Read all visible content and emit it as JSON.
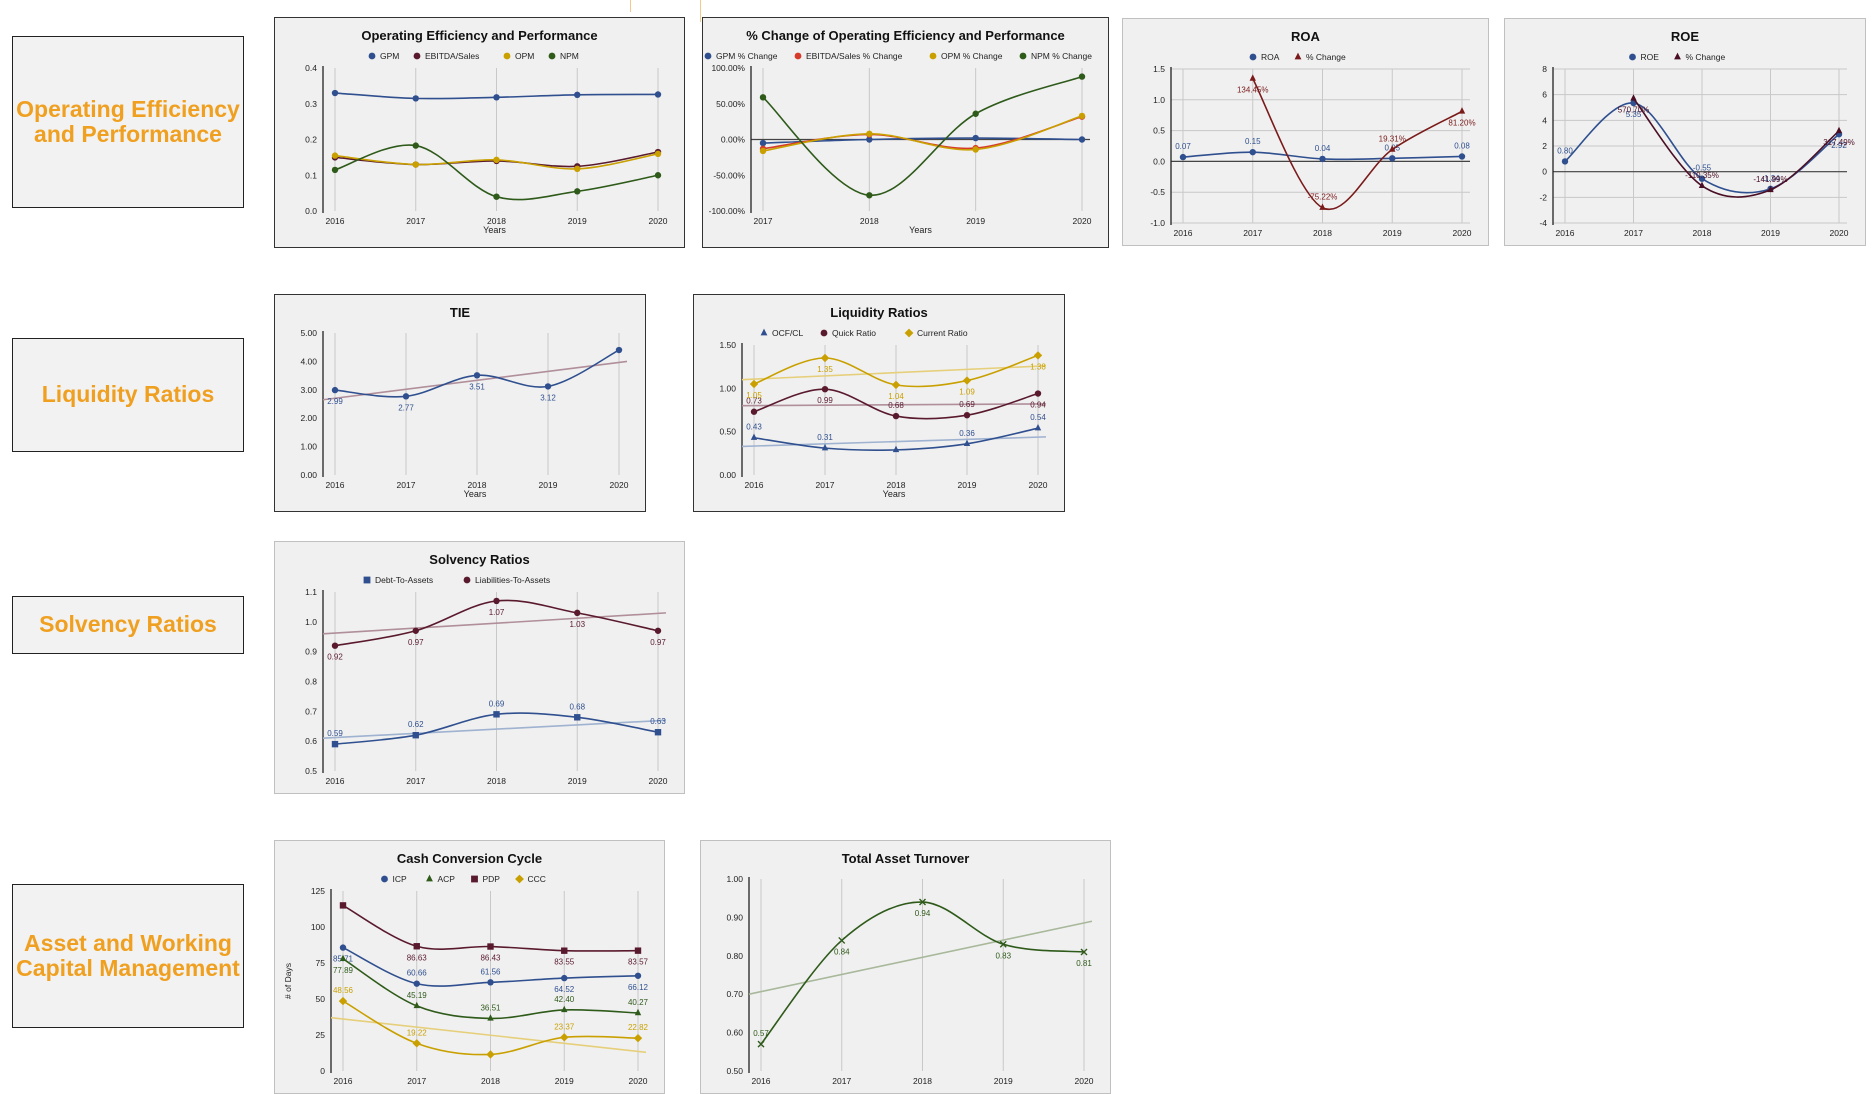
{
  "sections": [
    {
      "label": "Operating Efficiency and Performance"
    },
    {
      "label": "Liquidity Ratios"
    },
    {
      "label": "Solvency Ratios"
    },
    {
      "label": "Asset and Working Capital Management"
    }
  ],
  "chart_data": [
    {
      "id": "oep",
      "type": "line",
      "title": "Operating Efficiency and Performance",
      "xlabel": "Years",
      "ylabel": "",
      "categories": [
        "2016",
        "2017",
        "2018",
        "2019",
        "2020"
      ],
      "ylim": [
        0,
        0.4
      ],
      "yticks": [
        "0.0",
        "0.1",
        "0.2",
        "0.3",
        "0.4"
      ],
      "legend_position": "top",
      "grid": "vertical",
      "series": [
        {
          "name": "GPM",
          "color": "#2f4f8f",
          "marker": "circle",
          "values": [
            0.33,
            0.315,
            0.318,
            0.325,
            0.326
          ]
        },
        {
          "name": "EBITDA/Sales",
          "color": "#5a1a2e",
          "marker": "circle",
          "values": [
            0.15,
            0.13,
            0.14,
            0.125,
            0.165
          ]
        },
        {
          "name": "OPM",
          "color": "#c9a000",
          "marker": "circle",
          "values": [
            0.155,
            0.13,
            0.143,
            0.118,
            0.16
          ]
        },
        {
          "name": "NPM",
          "color": "#2e5a1a",
          "marker": "circle",
          "values": [
            0.115,
            0.183,
            0.04,
            0.055,
            0.1
          ]
        }
      ]
    },
    {
      "id": "oep_change",
      "type": "line",
      "title": "% Change of Operating Efficiency and Performance",
      "xlabel": "Years",
      "ylabel": "",
      "categories": [
        "2017",
        "2018",
        "2019",
        "2020"
      ],
      "ylim": [
        -100,
        100
      ],
      "yticks": [
        "-100.00%",
        "-50.00%",
        "0.00%",
        "50.00%",
        "100.00%"
      ],
      "legend_position": "top",
      "grid": "vertical",
      "series": [
        {
          "name": "GPM % Change",
          "color": "#2f4f8f",
          "marker": "circle",
          "values": [
            -5,
            0,
            2,
            0
          ]
        },
        {
          "name": "EBITDA/Sales % Change",
          "color": "#d63a2a",
          "marker": "circle",
          "values": [
            -13,
            7,
            -12,
            32
          ]
        },
        {
          "name": "OPM % Change",
          "color": "#c9a000",
          "marker": "circle",
          "values": [
            -16,
            8,
            -14,
            33
          ]
        },
        {
          "name": "NPM % Change",
          "color": "#2e5a1a",
          "marker": "circle",
          "values": [
            59,
            -78,
            36,
            88
          ]
        }
      ]
    },
    {
      "id": "roa",
      "type": "line",
      "title": "ROA",
      "xlabel": "",
      "ylabel": "",
      "categories": [
        "2016",
        "2017",
        "2018",
        "2019",
        "2020"
      ],
      "ylim": [
        -1.0,
        1.5
      ],
      "yticks": [
        "-1.0",
        "-0.5",
        "0.0",
        "0.5",
        "1.0",
        "1.5"
      ],
      "legend_position": "top",
      "grid": "both",
      "series": [
        {
          "name": "ROA",
          "color": "#2f4f8f",
          "marker": "circle",
          "values": [
            0.07,
            0.15,
            0.04,
            0.05,
            0.08
          ],
          "labels": [
            "0.07",
            "0.15",
            "0.04",
            "0.05",
            "0.08"
          ]
        },
        {
          "name": "% Change",
          "color": "#7a1a1a",
          "marker": "triangle",
          "values": [
            null,
            1.3445,
            -0.7522,
            0.1931,
            0.812
          ],
          "labels": [
            "",
            "134.45%",
            "-75.22%",
            "19.31%",
            "81.20%"
          ]
        }
      ]
    },
    {
      "id": "roe",
      "type": "line",
      "title": "ROE",
      "xlabel": "",
      "ylabel": "",
      "categories": [
        "2016",
        "2017",
        "2018",
        "2019",
        "2020"
      ],
      "ylim": [
        -4,
        8
      ],
      "yticks": [
        "-4",
        "-2",
        "0",
        "2",
        "4",
        "6",
        "8"
      ],
      "legend_position": "top",
      "grid": "both",
      "series": [
        {
          "name": "ROE",
          "color": "#2f4f8f",
          "marker": "circle",
          "values": [
            0.8,
            5.35,
            -0.55,
            -1.34,
            2.92
          ],
          "labels": [
            "0.80",
            "5.35",
            "-0.55",
            "-1.34",
            "2.92"
          ]
        },
        {
          "name": "% Change",
          "color": "#4a0f25",
          "marker": "triangle",
          "values": [
            null,
            5.707,
            -1.1035,
            -1.4199,
            3.1749
          ],
          "labels": [
            "",
            "570.70%",
            "-110.35%",
            "-141.99%",
            "317.49%"
          ]
        }
      ]
    },
    {
      "id": "tie",
      "type": "line",
      "title": "TIE",
      "xlabel": "Years",
      "ylabel": "",
      "categories": [
        "2016",
        "2017",
        "2018",
        "2019",
        "2020"
      ],
      "ylim": [
        0,
        5
      ],
      "yticks": [
        "0.00",
        "1.00",
        "2.00",
        "3.00",
        "4.00",
        "5.00"
      ],
      "legend_position": "none",
      "grid": "vertical",
      "series": [
        {
          "name": "",
          "color": "#2f4f8f",
          "marker": "circle",
          "values": [
            2.99,
            2.77,
            3.51,
            3.12,
            4.4
          ],
          "labels": [
            "2.99",
            "2.77",
            "3.51",
            "3.12",
            ""
          ],
          "trend": [
            2.65,
            4.0
          ],
          "trend_color": "#b08f9a"
        }
      ]
    },
    {
      "id": "liquidity",
      "type": "line",
      "title": "Liquidity Ratios",
      "xlabel": "Years",
      "ylabel": "",
      "categories": [
        "2016",
        "2017",
        "2018",
        "2019",
        "2020"
      ],
      "ylim": [
        0,
        1.5
      ],
      "yticks": [
        "0.00",
        "0.50",
        "1.00",
        "1.50"
      ],
      "legend_position": "top",
      "grid": "vertical",
      "series": [
        {
          "name": "OCF/CL",
          "color": "#2f4f8f",
          "marker": "triangle",
          "values": [
            0.43,
            0.31,
            0.29,
            0.36,
            0.54
          ],
          "labels": [
            "0.43",
            "0.31",
            "",
            "0.36",
            "0.54"
          ],
          "trend": [
            0.33,
            0.44
          ],
          "trend_color": "#9fb2d0"
        },
        {
          "name": "Quick Ratio",
          "color": "#5a1a2e",
          "marker": "circle",
          "values": [
            0.73,
            0.99,
            0.68,
            0.69,
            0.94
          ],
          "labels": [
            "0.73",
            "0.99",
            "0.68",
            "0.69",
            "0.94"
          ],
          "trend": [
            0.8,
            0.82
          ],
          "trend_color": "#b08f9a"
        },
        {
          "name": "Current Ratio",
          "color": "#c9a000",
          "marker": "diamond",
          "values": [
            1.05,
            1.35,
            1.04,
            1.09,
            1.38
          ],
          "labels": [
            "1.05",
            "1.35",
            "1.04",
            "1.09",
            "1.38"
          ],
          "trend": [
            1.1,
            1.26
          ],
          "trend_color": "#e6cf7a"
        }
      ]
    },
    {
      "id": "solvency",
      "type": "line",
      "title": "Solvency Ratios",
      "xlabel": "",
      "ylabel": "",
      "categories": [
        "2016",
        "2017",
        "2018",
        "2019",
        "2020"
      ],
      "ylim": [
        0.5,
        1.1
      ],
      "yticks": [
        "0.5",
        "0.6",
        "0.7",
        "0.8",
        "0.9",
        "1.0",
        "1.1"
      ],
      "legend_position": "top",
      "grid": "vertical",
      "series": [
        {
          "name": "Debt-To-Assets",
          "color": "#2f4f8f",
          "marker": "square",
          "values": [
            0.59,
            0.62,
            0.69,
            0.68,
            0.63
          ],
          "labels": [
            "0.59",
            "0.62",
            "0.69",
            "0.68",
            "0.63"
          ],
          "trend": [
            0.61,
            0.67
          ],
          "trend_color": "#9fb2d0"
        },
        {
          "name": "Liabilities-To-Assets",
          "color": "#5a1a2e",
          "marker": "circle",
          "values": [
            0.92,
            0.97,
            1.07,
            1.03,
            0.97
          ],
          "labels": [
            "0.92",
            "0.97",
            "1.07",
            "1.03",
            "0.97"
          ],
          "trend": [
            0.96,
            1.03
          ],
          "trend_color": "#b08f9a"
        }
      ]
    },
    {
      "id": "ccc",
      "type": "line",
      "title": "Cash Conversion Cycle",
      "xlabel": "",
      "ylabel": "# of Days",
      "categories": [
        "2016",
        "2017",
        "2018",
        "2019",
        "2020"
      ],
      "ylim": [
        0,
        125
      ],
      "yticks": [
        "0",
        "25",
        "50",
        "75",
        "100",
        "125"
      ],
      "legend_position": "top",
      "grid": "vertical",
      "series": [
        {
          "name": "ICP",
          "color": "#2f4f8f",
          "marker": "circle",
          "values": [
            85.71,
            60.66,
            61.56,
            64.52,
            66.12
          ],
          "labels": [
            "85.71",
            "60.66",
            "61.56",
            "64.52",
            "66.12"
          ]
        },
        {
          "name": "ACP",
          "color": "#2e5a1a",
          "marker": "triangle",
          "values": [
            77.89,
            45.19,
            36.51,
            42.4,
            40.27
          ],
          "labels": [
            "77.89",
            "45.19",
            "36.51",
            "42.40",
            "40.27"
          ]
        },
        {
          "name": "PDP",
          "color": "#5a1a2e",
          "marker": "square",
          "values": [
            115,
            86.63,
            86.43,
            83.55,
            83.57
          ],
          "labels": [
            "",
            "86.63",
            "86.43",
            "83.55",
            "83.57"
          ]
        },
        {
          "name": "CCC",
          "color": "#c9a000",
          "marker": "diamond",
          "values": [
            48.56,
            19.22,
            11.5,
            23.37,
            22.82
          ],
          "labels": [
            "48.56",
            "19.22",
            "",
            "23.37",
            "22.82"
          ],
          "trend": [
            37,
            13
          ],
          "trend_color": "#e6cf7a"
        }
      ]
    },
    {
      "id": "tat",
      "type": "line",
      "title": "Total Asset Turnover",
      "xlabel": "",
      "ylabel": "",
      "categories": [
        "2016",
        "2017",
        "2018",
        "2019",
        "2020"
      ],
      "ylim": [
        0.5,
        1.0
      ],
      "yticks": [
        "0.50",
        "0.60",
        "0.70",
        "0.80",
        "0.90",
        "1.00"
      ],
      "legend_position": "none",
      "grid": "vertical",
      "series": [
        {
          "name": "",
          "color": "#2e5a1a",
          "marker": "cross",
          "values": [
            0.57,
            0.84,
            0.94,
            0.83,
            0.81
          ],
          "labels": [
            "0.57",
            "0.84",
            "0.94",
            "0.83",
            "0.81"
          ],
          "trend": [
            0.7,
            0.89
          ],
          "trend_color": "#a8b89a"
        }
      ]
    }
  ]
}
